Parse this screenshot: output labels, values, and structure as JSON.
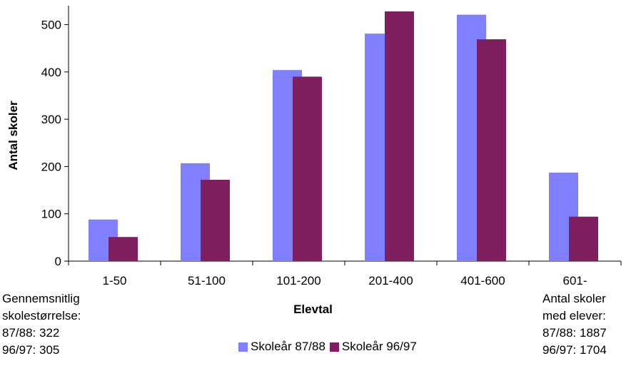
{
  "chart_data": {
    "type": "bar",
    "categories": [
      "1-50",
      "51-100",
      "101-200",
      "201-400",
      "401-600",
      "601-"
    ],
    "series": [
      {
        "name": "Skoleår 87/88",
        "color": "#8080ff",
        "values": [
          88,
          207,
          404,
          481,
          521,
          187
        ]
      },
      {
        "name": "Skoleår 96/97",
        "color": "#7f1f5f",
        "values": [
          51,
          172,
          390,
          528,
          469,
          94
        ]
      }
    ],
    "title": "",
    "xlabel": "Elevtal",
    "ylabel": "Antal skoler",
    "ylim": [
      0,
      540
    ],
    "yticks": [
      0,
      100,
      200,
      300,
      400,
      500
    ],
    "grid": false,
    "legend_position": "bottom-center"
  },
  "notes": {
    "left": [
      "Gennemsnitlig",
      "skolestørrelse:",
      "87/88: 322",
      "96/97: 305"
    ],
    "right": [
      "Antal skoler",
      "med elever:",
      "87/88: 1887",
      "96/97: 1704"
    ]
  }
}
